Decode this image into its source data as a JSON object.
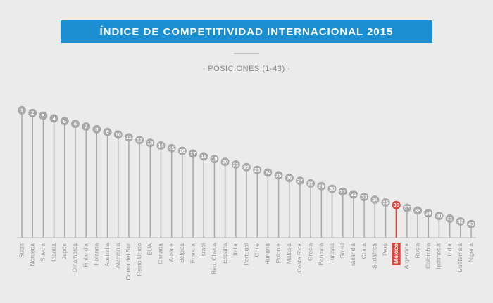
{
  "chart_data": {
    "type": "lollipop",
    "title": "ÍNDICE DE COMPETITIVIDAD INTERNACIONAL 2015",
    "subtitle": "· POSICIONES (1-43) ·",
    "categories": [
      "Suiza",
      "Noruega",
      "Suecia",
      "Irlanda",
      "Japón",
      "Dinamarca",
      "Finlandia",
      "Holanda",
      "Australia",
      "Alemania",
      "Corea del Sur",
      "Reino Unido",
      "EUA",
      "Canadá",
      "Austria",
      "Bélgica",
      "Francia",
      "Israel",
      "Rep. Checa",
      "España",
      "Italia",
      "Portugal",
      "Chile",
      "Hungría",
      "Polonia",
      "Malasia",
      "Costa Rica",
      "Grecia",
      "Panamá",
      "Turquía",
      "Brasil",
      "Tailandia",
      "China",
      "Sudáfrica",
      "Perú",
      "México",
      "Argentina",
      "Rusia",
      "Colombia",
      "Indonesia",
      "India",
      "Guatemala",
      "Nigeria"
    ],
    "values": [
      1,
      2,
      3,
      4,
      5,
      6,
      7,
      8,
      9,
      10,
      11,
      12,
      13,
      14,
      15,
      16,
      17,
      18,
      19,
      20,
      21,
      22,
      23,
      24,
      25,
      26,
      27,
      28,
      29,
      30,
      31,
      32,
      33,
      34,
      35,
      36,
      37,
      38,
      39,
      40,
      41,
      42,
      43
    ],
    "colors": [
      "#a8a8a8",
      "#5b5b5b"
    ],
    "highlight": "México",
    "highlight_color": "#e0413a",
    "ylim": [
      48,
      0
    ]
  }
}
